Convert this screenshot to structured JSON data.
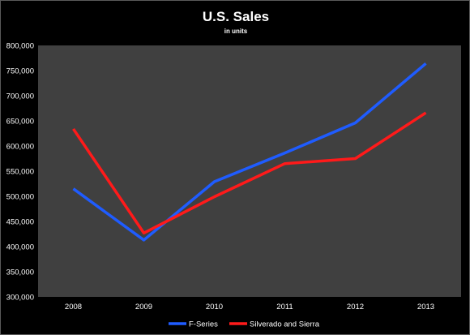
{
  "chart_data": {
    "type": "line",
    "title": "U.S. Sales",
    "subtitle": "in units",
    "categories": [
      "2008",
      "2009",
      "2010",
      "2011",
      "2012",
      "2013"
    ],
    "series": [
      {
        "name": "F-Series",
        "color": "#1f5cff",
        "values": [
          515000,
          413000,
          529000,
          586000,
          646000,
          764000
        ]
      },
      {
        "name": "Silverado and Sierra",
        "color": "#ff1a1a",
        "values": [
          634000,
          427000,
          499000,
          565000,
          575000,
          666000
        ]
      }
    ],
    "ylim": [
      300000,
      800000
    ],
    "ytick_step": 50000,
    "ytick_labels": [
      "300,000",
      "350,000",
      "400,000",
      "450,000",
      "500,000",
      "550,000",
      "600,000",
      "650,000",
      "700,000",
      "750,000",
      "800,000"
    ],
    "xlabel": "",
    "ylabel": "",
    "grid": false,
    "legend_position": "bottom",
    "plot_background": "#404040",
    "chart_background": "#000000"
  }
}
